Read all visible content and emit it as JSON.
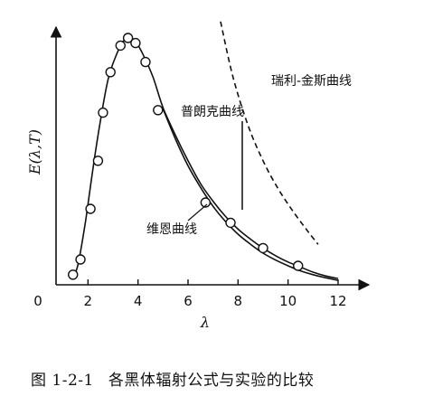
{
  "chart_data": {
    "type": "line",
    "title": "",
    "xlabel": "λ",
    "ylabel": "E(λ,T)",
    "xlim": [
      0,
      12
    ],
    "ylim": [
      0,
      10
    ],
    "x_ticks": [
      "0",
      "2",
      "4",
      "6",
      "8",
      "10",
      "12"
    ],
    "grid": false,
    "series": [
      {
        "name": "普朗克曲线",
        "style": "solid",
        "x": [
          1.4,
          1.6,
          1.9,
          2.2,
          2.5,
          2.8,
          3.1,
          3.4,
          3.6,
          3.9,
          4.2,
          4.6,
          5.0,
          5.5,
          6.0,
          6.5,
          7.0,
          7.5,
          8.0,
          8.5,
          9.0,
          9.5,
          10.0,
          10.5,
          11.0,
          11.5,
          12.0
        ],
        "y": [
          0.3,
          0.8,
          2.5,
          4.6,
          6.5,
          8.1,
          9.0,
          9.6,
          9.75,
          9.6,
          9.1,
          8.2,
          7.0,
          5.9,
          4.9,
          4.0,
          3.3,
          2.7,
          2.2,
          1.8,
          1.45,
          1.15,
          0.9,
          0.7,
          0.5,
          0.35,
          0.25
        ]
      },
      {
        "name": "维恩曲线",
        "style": "solid",
        "x": [
          5.0,
          5.5,
          6.0,
          6.5,
          7.0,
          7.5,
          8.0,
          8.5,
          9.0,
          9.5,
          10.0,
          10.5,
          11.0,
          11.5,
          12.0
        ],
        "y": [
          6.95,
          5.75,
          4.7,
          3.85,
          3.1,
          2.5,
          2.0,
          1.6,
          1.25,
          0.98,
          0.75,
          0.55,
          0.4,
          0.28,
          0.18
        ]
      },
      {
        "name": "瑞利-金斯曲线",
        "style": "dashed",
        "x": [
          7.3,
          7.8,
          8.4,
          9.0,
          9.6,
          10.2,
          10.8,
          11.2
        ],
        "y": [
          10.4,
          8.2,
          6.3,
          4.9,
          3.8,
          2.9,
          2.1,
          1.6
        ]
      },
      {
        "name": "实验数据",
        "style": "points",
        "x": [
          1.4,
          1.7,
          2.1,
          2.4,
          2.6,
          2.9,
          3.3,
          3.6,
          3.9,
          4.3,
          4.8,
          6.7,
          7.7,
          9.0,
          10.4
        ],
        "y": [
          0.4,
          1.0,
          3.0,
          4.9,
          6.8,
          8.4,
          9.45,
          9.75,
          9.55,
          8.8,
          6.9,
          3.25,
          2.45,
          1.45,
          0.75
        ]
      }
    ],
    "annotations": [
      "普朗克曲线",
      "维恩曲线",
      "瑞利-金斯曲线"
    ]
  },
  "caption": {
    "figure_number": "图 1-2-1",
    "text": "各黑体辐射公式与实验的比较"
  }
}
